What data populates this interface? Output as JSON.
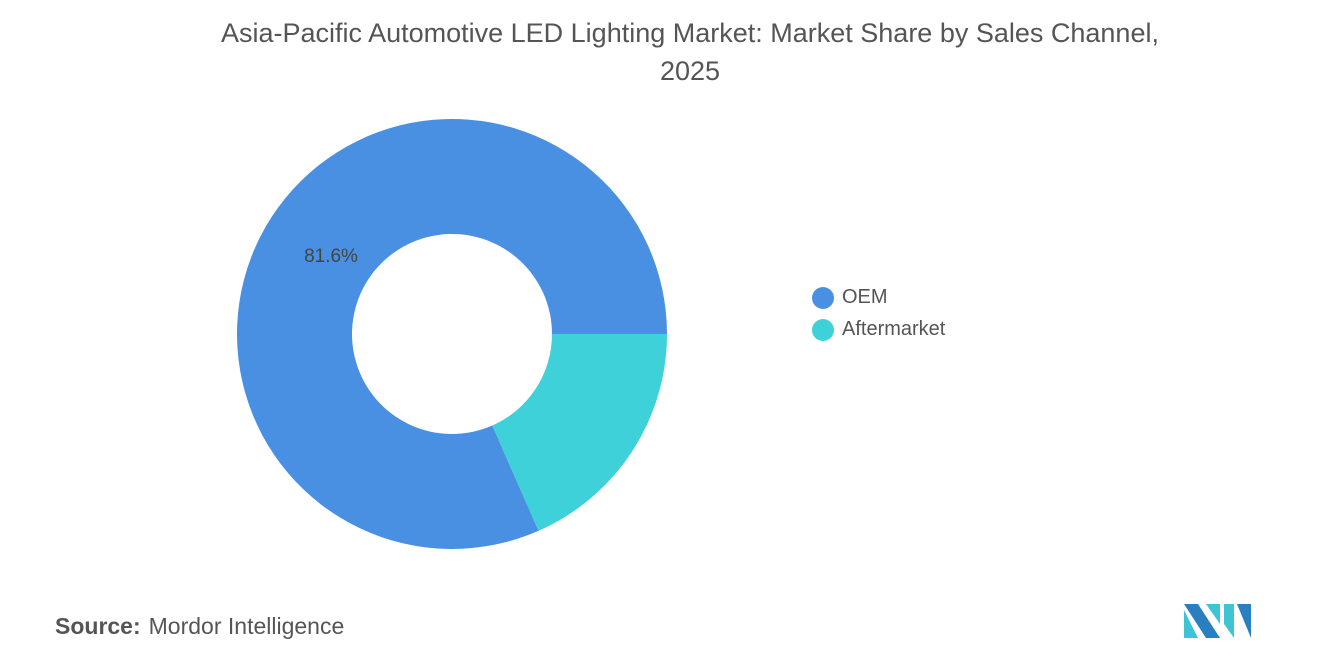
{
  "chart_data": {
    "type": "pie",
    "donut": true,
    "title": "Asia-Pacific Automotive LED Lighting Market: Market Share by Sales Channel, 2025",
    "title_line1": "Asia-Pacific Automotive LED Lighting Market: Market Share by Sales Channel,",
    "title_line2": "2025",
    "series": [
      {
        "name": "OEM",
        "value": 81.6,
        "color": "#4a90e2",
        "label": "81.6%"
      },
      {
        "name": "Aftermarket",
        "value": 18.4,
        "color": "#3fd1d9"
      }
    ],
    "legend_position": "right"
  },
  "source": {
    "label": "Source:",
    "value": "Mordor Intelligence"
  }
}
